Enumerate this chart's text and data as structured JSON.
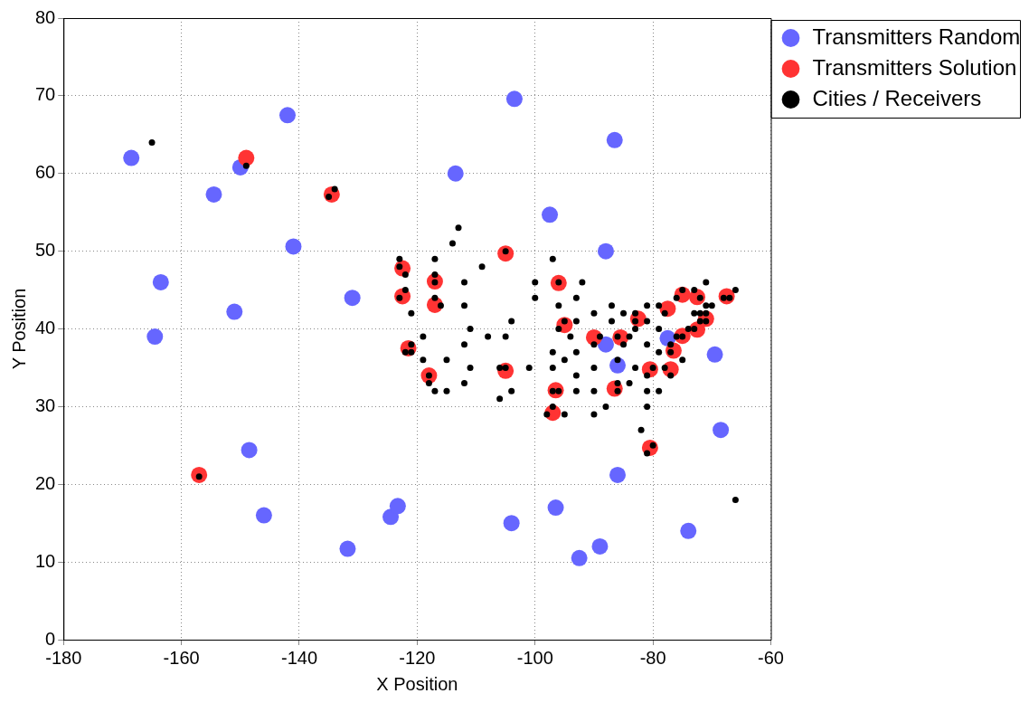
{
  "chart_data": {
    "type": "scatter",
    "xlabel": "X Position",
    "ylabel": "Y Position",
    "xlim": [
      -180,
      -60
    ],
    "xticks": [
      -180,
      -160,
      -140,
      -120,
      -100,
      -80,
      -60
    ],
    "ylim": [
      0,
      80
    ],
    "yticks": [
      0,
      10,
      20,
      30,
      40,
      50,
      60,
      70,
      80
    ],
    "grid": true,
    "legend": "top right",
    "marker": "circle",
    "series": [
      {
        "name": "Transmitters Random",
        "color": "#6666ff",
        "x": [
          -168.5,
          -164.5,
          -163.5,
          -154.5,
          -150,
          -151,
          -148.5,
          -146,
          -142,
          -141,
          -131,
          -131.8,
          -124.5,
          -123.3,
          -113.5,
          -103.5,
          -104,
          -97.5,
          -96.5,
          -92.5,
          -88,
          -88,
          -86.5,
          -86,
          -86,
          -89,
          -77.5,
          -74,
          -69.5,
          -68.5
        ],
        "values": [
          62,
          39,
          46,
          57.3,
          60.8,
          42.2,
          24.4,
          16,
          67.5,
          50.6,
          44,
          11.7,
          15.8,
          17.2,
          60,
          69.6,
          15,
          54.7,
          17,
          10.5,
          50,
          38,
          64.3,
          35.3,
          21.2,
          12,
          38.8,
          14,
          36.7,
          27
        ]
      },
      {
        "name": "Transmitters Solution",
        "color": "#ff3333",
        "x": [
          -149,
          -157,
          -134.5,
          -122.5,
          -122.5,
          -121.5,
          -117,
          -117,
          -118,
          -105,
          -105,
          -96,
          -95,
          -97,
          -96.5,
          -90,
          -86.5,
          -85.5,
          -82.5,
          -80.5,
          -80.5,
          -77.5,
          -77,
          -76.5,
          -75,
          -75,
          -72.5,
          -72.5,
          -71,
          -67.5
        ],
        "values": [
          62,
          21.2,
          57.3,
          47.8,
          44.2,
          37.5,
          46.1,
          43.1,
          34,
          49.7,
          34.6,
          45.9,
          40.5,
          29.2,
          32.1,
          38.9,
          32.3,
          38.9,
          41.3,
          34.8,
          24.7,
          42.6,
          34.8,
          37.2,
          44.4,
          39.1,
          44.1,
          39.9,
          41.3,
          44.2
        ]
      },
      {
        "name": "Cities / Receivers",
        "color": "#000000",
        "x": [
          -165,
          -149,
          -135,
          -134,
          -157,
          -66,
          -113,
          -114,
          -105,
          -123,
          -117,
          -123,
          -122,
          -117,
          -117,
          -109,
          -112,
          -100,
          -96,
          -97,
          -122,
          -123,
          -117,
          -116,
          -112,
          -100,
          -96,
          -121,
          -104,
          -95,
          -96,
          -111,
          -119,
          -108,
          -105,
          -94,
          -121,
          -112,
          -122,
          -121,
          -119,
          -115,
          -97,
          -95,
          -111,
          -106,
          -105,
          -101,
          -97,
          -118,
          -118,
          -112,
          -117,
          -115,
          -104,
          -97,
          -96,
          -106,
          -97,
          -98,
          -95,
          -92,
          -71,
          -66,
          -75,
          -73,
          -93,
          -76,
          -72,
          -68,
          -67,
          -87,
          -81,
          -79,
          -71,
          -70,
          -90,
          -85,
          -83,
          -78,
          -73,
          -72,
          -71,
          -93,
          -87,
          -83,
          -81,
          -72,
          -71,
          -83,
          -79,
          -74,
          -73,
          -89,
          -86,
          -84,
          -76,
          -75,
          -90,
          -85,
          -81,
          -77,
          -93,
          -79,
          -77,
          -86,
          -75,
          -90,
          -83,
          -80,
          -78,
          -93,
          -81,
          -77,
          -86,
          -84,
          -93,
          -90,
          -86,
          -81,
          -79,
          -88,
          -81,
          -90,
          -82,
          -80,
          -81
        ],
        "values": [
          64,
          61,
          57,
          58,
          21,
          18,
          53,
          51,
          50,
          49,
          49,
          48,
          47,
          47,
          46,
          48,
          46,
          46,
          46,
          49,
          45,
          44,
          44,
          43,
          43,
          44,
          43,
          42,
          41,
          41,
          40,
          40,
          39,
          39,
          39,
          39,
          38,
          38,
          37,
          37,
          36,
          36,
          37,
          36,
          35,
          35,
          35,
          35,
          35,
          34,
          33,
          33,
          32,
          32,
          32,
          32,
          32,
          31,
          30,
          29,
          29,
          46,
          46,
          45,
          45,
          45,
          44,
          44,
          44,
          44,
          44,
          43,
          43,
          43,
          43,
          43,
          42,
          42,
          42,
          42,
          42,
          42,
          42,
          41,
          41,
          41,
          41,
          41,
          41,
          40,
          40,
          40,
          40,
          39,
          39,
          39,
          39,
          39,
          38,
          38,
          38,
          38,
          37,
          37,
          37,
          36,
          36,
          35,
          35,
          35,
          35,
          34,
          34,
          34,
          33,
          33,
          32,
          32,
          32,
          32,
          32,
          30,
          30,
          29,
          27,
          25,
          24
        ]
      }
    ]
  }
}
